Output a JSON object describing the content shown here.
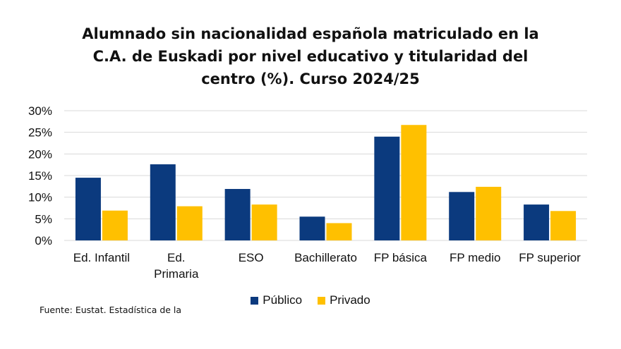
{
  "title_lines": [
    "Alumnado sin nacionalidad española matriculado en la",
    "C.A. de Euskadi por nivel educativo y titularidad del",
    "centro (%). Curso 2024/25"
  ],
  "source": "Fuente: Eustat. Estadística de la",
  "colors": {
    "publico": "#0b3a7e",
    "privado": "#ffc000",
    "grid": "#d9d9d9"
  },
  "chart_data": {
    "type": "bar",
    "title": "Alumnado sin nacionalidad española matriculado en la C.A. de Euskadi por nivel educativo y titularidad del centro (%). Curso 2024/25",
    "categories": [
      [
        "Ed. Infantil"
      ],
      [
        "Ed.",
        "Primaria"
      ],
      [
        "ESO"
      ],
      [
        "Bachillerato"
      ],
      [
        "FP básica"
      ],
      [
        "FP medio"
      ],
      [
        "FP superior"
      ]
    ],
    "series": [
      {
        "name": "Público",
        "values": [
          14.5,
          17.6,
          11.9,
          5.5,
          24.0,
          11.2,
          8.3
        ]
      },
      {
        "name": "Privado",
        "values": [
          6.9,
          7.9,
          8.3,
          4.0,
          26.7,
          12.4,
          6.8
        ]
      }
    ],
    "yticks": [
      "0%",
      "5%",
      "10%",
      "15%",
      "20%",
      "25%",
      "30%"
    ],
    "ylim": [
      0,
      30
    ],
    "grid": true,
    "legend_position": "bottom"
  }
}
